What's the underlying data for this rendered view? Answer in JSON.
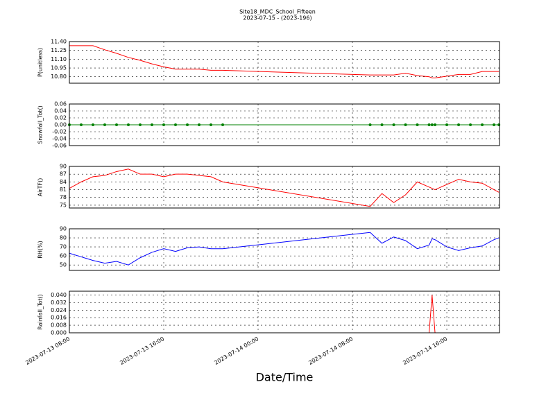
{
  "chart_data": [
    {
      "type": "line",
      "title": "Site18_MDC_School_Fifteen",
      "subtitle": "2023-07-15 - (2023-196)",
      "ylabel": "P(unitless)",
      "color": "#ff0000",
      "grid": true,
      "x": [
        "2023-07-13 08:00",
        "2023-07-13 09:00",
        "2023-07-13 10:00",
        "2023-07-13 11:00",
        "2023-07-13 12:00",
        "2023-07-13 13:00",
        "2023-07-13 14:00",
        "2023-07-13 15:00",
        "2023-07-13 16:00",
        "2023-07-13 17:00",
        "2023-07-13 18:00",
        "2023-07-13 19:00",
        "2023-07-13 20:00",
        "2023-07-13 21:00",
        "2023-07-14 09:30",
        "2023-07-14 10:30",
        "2023-07-14 11:30",
        "2023-07-14 12:30",
        "2023-07-14 13:30",
        "2023-07-14 14:30",
        "2023-07-14 14:45",
        "2023-07-14 15:00",
        "2023-07-14 16:00",
        "2023-07-14 17:00",
        "2023-07-14 18:00",
        "2023-07-14 19:00",
        "2023-07-14 20:00",
        "2023-07-14 20:25"
      ],
      "values": [
        11.33,
        11.33,
        11.33,
        11.26,
        11.2,
        11.13,
        11.08,
        11.02,
        10.97,
        10.93,
        10.93,
        10.93,
        10.91,
        10.91,
        10.83,
        10.83,
        10.83,
        10.86,
        10.82,
        10.8,
        10.78,
        10.78,
        10.81,
        10.84,
        10.84,
        10.89,
        10.89,
        10.89
      ],
      "xlim": [
        "2023-07-13 08:00",
        "2023-07-14 20:28"
      ],
      "xticks": [
        "2023-07-13 08:00",
        "2023-07-13 16:00",
        "2023-07-14 00:00",
        "2023-07-14 08:00",
        "2023-07-14 16:00"
      ],
      "ylim": [
        10.69,
        11.4
      ],
      "yticks": [
        {
          "value": 10.8,
          "label": "10.80"
        },
        10.95,
        {
          "value": 11.1,
          "label": "11.10"
        },
        11.25,
        {
          "value": 11.4,
          "label": "11.40"
        }
      ]
    },
    {
      "type": "line",
      "ylabel": "Snowfall_Tot()",
      "color": "#008000",
      "markers": true,
      "grid": true,
      "x": [
        "2023-07-13 08:00",
        "2023-07-13 09:00",
        "2023-07-13 10:00",
        "2023-07-13 11:00",
        "2023-07-13 12:00",
        "2023-07-13 13:00",
        "2023-07-13 14:00",
        "2023-07-13 15:00",
        "2023-07-13 16:00",
        "2023-07-13 17:00",
        "2023-07-13 18:00",
        "2023-07-13 19:00",
        "2023-07-13 20:00",
        "2023-07-13 21:00",
        "2023-07-14 09:30",
        "2023-07-14 10:30",
        "2023-07-14 11:30",
        "2023-07-14 12:30",
        "2023-07-14 13:30",
        "2023-07-14 14:30",
        "2023-07-14 14:45",
        "2023-07-14 15:00",
        "2023-07-14 16:00",
        "2023-07-14 17:00",
        "2023-07-14 18:00",
        "2023-07-14 19:00",
        "2023-07-14 20:00",
        "2023-07-14 20:25"
      ],
      "values": [
        0,
        0,
        0,
        0,
        0,
        0,
        0,
        0,
        0,
        0,
        0,
        0,
        0,
        0,
        0,
        0,
        0,
        0,
        0,
        0,
        0,
        0,
        0,
        0,
        0,
        0,
        0,
        0
      ],
      "xlim": [
        "2023-07-13 08:00",
        "2023-07-14 20:28"
      ],
      "xticks": [
        "2023-07-13 08:00",
        "2023-07-13 16:00",
        "2023-07-14 00:00",
        "2023-07-14 08:00",
        "2023-07-14 16:00"
      ],
      "ylim": [
        -0.06,
        0.06
      ],
      "yticks": [
        -0.06,
        -0.04,
        -0.02,
        {
          "value": 0,
          "label": "0.00"
        },
        0.02,
        0.04,
        0.06
      ]
    },
    {
      "type": "line",
      "ylabel": "AirTF()",
      "color": "#ff0000",
      "grid": true,
      "x": [
        "2023-07-13 08:00",
        "2023-07-13 09:00",
        "2023-07-13 10:00",
        "2023-07-13 11:00",
        "2023-07-13 12:00",
        "2023-07-13 13:00",
        "2023-07-13 14:00",
        "2023-07-13 15:00",
        "2023-07-13 16:00",
        "2023-07-13 17:00",
        "2023-07-13 18:00",
        "2023-07-13 19:00",
        "2023-07-13 20:00",
        "2023-07-13 21:00",
        "2023-07-14 09:30",
        "2023-07-14 10:30",
        "2023-07-14 11:30",
        "2023-07-14 12:30",
        "2023-07-14 13:30",
        "2023-07-14 14:30",
        "2023-07-14 14:45",
        "2023-07-14 15:00",
        "2023-07-14 16:00",
        "2023-07-14 17:00",
        "2023-07-14 18:00",
        "2023-07-14 19:00",
        "2023-07-14 20:00",
        "2023-07-14 20:25"
      ],
      "values": [
        81.5,
        84,
        86,
        86.5,
        88,
        89,
        87,
        87,
        86,
        87,
        87,
        86.5,
        86,
        84,
        74.5,
        79.5,
        76,
        79,
        84,
        82,
        81.5,
        81,
        83,
        85,
        84,
        83.5,
        81,
        80
      ],
      "xlim": [
        "2023-07-13 08:00",
        "2023-07-14 20:28"
      ],
      "xticks": [
        "2023-07-13 08:00",
        "2023-07-13 16:00",
        "2023-07-14 00:00",
        "2023-07-14 08:00",
        "2023-07-14 16:00"
      ],
      "ylim": [
        73.9,
        90
      ],
      "yticks": [
        75,
        78,
        81,
        84,
        87,
        90
      ]
    },
    {
      "type": "line",
      "ylabel": "RH(%)",
      "color": "#0000ff",
      "grid": true,
      "x": [
        "2023-07-13 08:00",
        "2023-07-13 09:00",
        "2023-07-13 10:00",
        "2023-07-13 11:00",
        "2023-07-13 12:00",
        "2023-07-13 13:00",
        "2023-07-13 14:00",
        "2023-07-13 15:00",
        "2023-07-13 16:00",
        "2023-07-13 17:00",
        "2023-07-13 18:00",
        "2023-07-13 19:00",
        "2023-07-13 20:00",
        "2023-07-13 21:00",
        "2023-07-14 09:30",
        "2023-07-14 10:30",
        "2023-07-14 11:30",
        "2023-07-14 12:30",
        "2023-07-14 13:30",
        "2023-07-14 14:30",
        "2023-07-14 14:45",
        "2023-07-14 15:00",
        "2023-07-14 16:00",
        "2023-07-14 17:00",
        "2023-07-14 18:00",
        "2023-07-14 19:00",
        "2023-07-14 20:00",
        "2023-07-14 20:25"
      ],
      "values": [
        63,
        59,
        55,
        52,
        54,
        50,
        58,
        64,
        68,
        65,
        69,
        70,
        68,
        68,
        86,
        74,
        81,
        77,
        68,
        72,
        79,
        78,
        70,
        66,
        69,
        71,
        78,
        80
      ],
      "xlim": [
        "2023-07-13 08:00",
        "2023-07-14 20:28"
      ],
      "xticks": [
        "2023-07-13 08:00",
        "2023-07-13 16:00",
        "2023-07-14 00:00",
        "2023-07-14 08:00",
        "2023-07-14 16:00"
      ],
      "ylim": [
        44,
        90
      ],
      "yticks": [
        50,
        60,
        70,
        80,
        90
      ]
    },
    {
      "type": "line",
      "ylabel": "Rainfall_Tot()",
      "xlabel": "Date/Time",
      "color": "#ff0000",
      "grid": true,
      "show_xlabels": true,
      "x": [
        "2023-07-13 08:00",
        "2023-07-13 09:00",
        "2023-07-13 10:00",
        "2023-07-13 11:00",
        "2023-07-13 12:00",
        "2023-07-13 13:00",
        "2023-07-13 14:00",
        "2023-07-13 15:00",
        "2023-07-13 16:00",
        "2023-07-13 17:00",
        "2023-07-13 18:00",
        "2023-07-13 19:00",
        "2023-07-13 20:00",
        "2023-07-13 21:00",
        "2023-07-14 09:30",
        "2023-07-14 10:30",
        "2023-07-14 11:30",
        "2023-07-14 12:30",
        "2023-07-14 13:30",
        "2023-07-14 14:30",
        "2023-07-14 14:45",
        "2023-07-14 15:00",
        "2023-07-14 16:00",
        "2023-07-14 17:00",
        "2023-07-14 18:00",
        "2023-07-14 19:00",
        "2023-07-14 20:00",
        "2023-07-14 20:25"
      ],
      "values": [
        0,
        0,
        0,
        0,
        0,
        0,
        0,
        0,
        0,
        0,
        0,
        0,
        0,
        0,
        0,
        0,
        0,
        0,
        0,
        0,
        0.04,
        0,
        0,
        0,
        0,
        0,
        0,
        0
      ],
      "xlim": [
        "2023-07-13 08:00",
        "2023-07-14 20:28"
      ],
      "xticks": [
        "2023-07-13 08:00",
        "2023-07-13 16:00",
        "2023-07-14 00:00",
        "2023-07-14 08:00",
        "2023-07-14 16:00"
      ],
      "ylim": [
        0,
        0.044
      ],
      "yticks": [
        {
          "value": 0,
          "label": "0.000"
        },
        {
          "value": 0.008,
          "label": "0.008"
        },
        {
          "value": 0.016,
          "label": "0.016"
        },
        {
          "value": 0.024,
          "label": "0.024"
        },
        {
          "value": 0.032,
          "label": "0.032"
        },
        {
          "value": 0.04,
          "label": "0.040"
        }
      ]
    }
  ]
}
